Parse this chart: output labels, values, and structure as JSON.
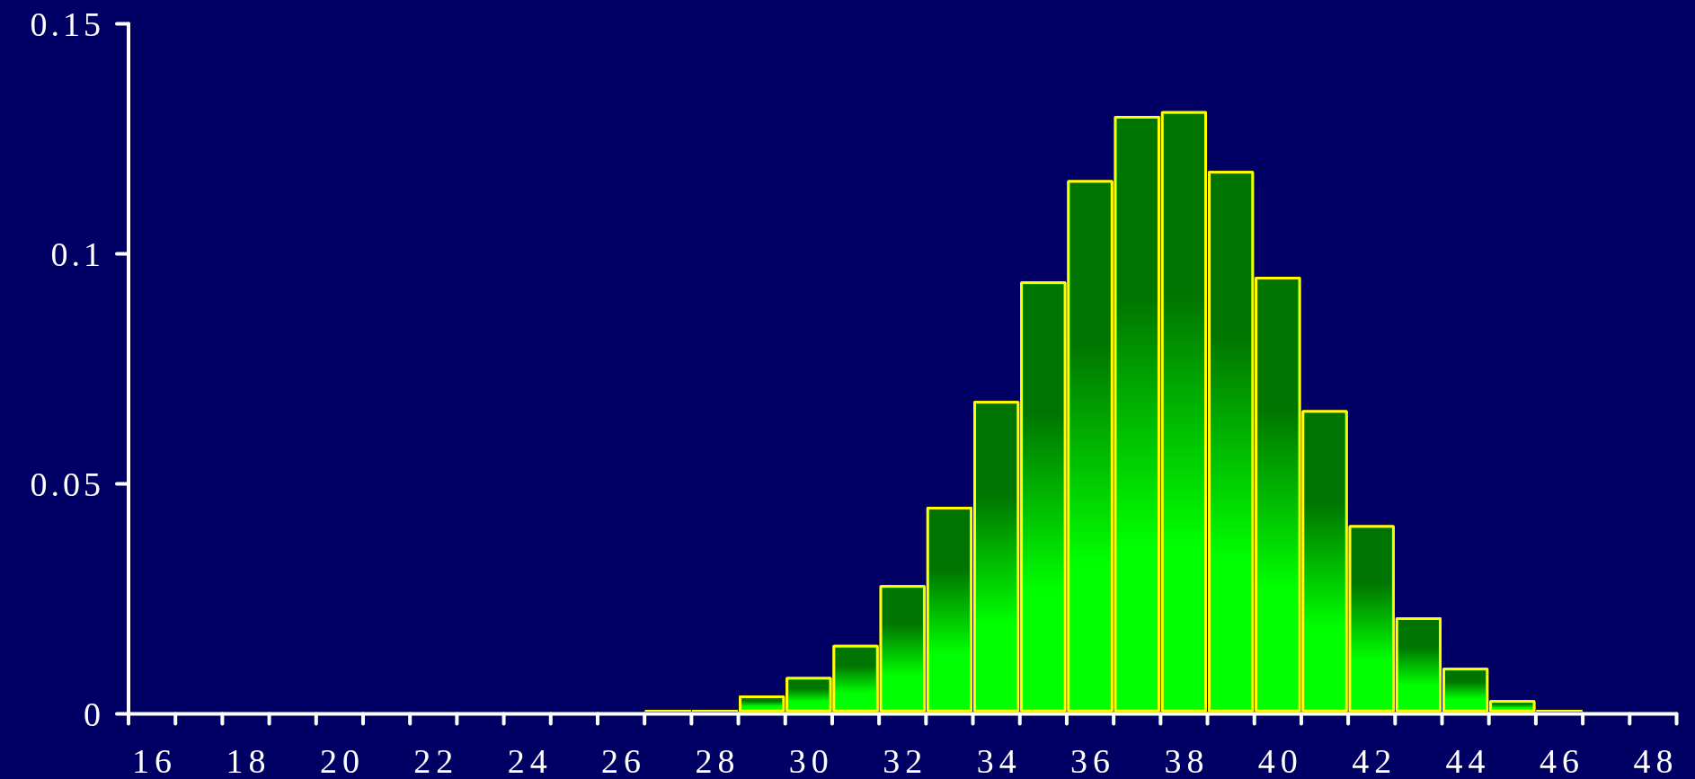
{
  "chart_data": {
    "type": "histogram",
    "color": "#00ff00",
    "bins": [
      26.5,
      27.5,
      28.5,
      29.5,
      30.5,
      31.5,
      32.5,
      33.5,
      34.5,
      35.5,
      36.5,
      37.5,
      38.5,
      39.5,
      40.5,
      41.5,
      42.5,
      43.5,
      44.5,
      45.5,
      46.5
    ],
    "values": [
      0.001,
      0.001,
      0.004,
      0.008,
      0.015,
      0.028,
      0.045,
      0.068,
      0.094,
      0.116,
      0.13,
      0.131,
      0.118,
      0.095,
      0.066,
      0.041,
      0.021,
      0.01,
      0.003,
      0.001
    ],
    "xlim": [
      15.5,
      48.5
    ],
    "xticks": [
      {
        "value": 15.5,
        "label": null
      },
      16,
      {
        "value": 16.5,
        "label": null
      },
      {
        "value": 17.5,
        "label": null
      },
      18,
      {
        "value": 18.5,
        "label": null
      },
      {
        "value": 19.5,
        "label": null
      },
      20,
      {
        "value": 20.5,
        "label": null
      },
      {
        "value": 21.5,
        "label": null
      },
      22,
      {
        "value": 22.5,
        "label": null
      },
      {
        "value": 23.5,
        "label": null
      },
      24,
      {
        "value": 24.5,
        "label": null
      },
      {
        "value": 25.5,
        "label": null
      },
      26,
      {
        "value": 26.5,
        "label": null
      },
      {
        "value": 27.5,
        "label": null
      },
      28,
      {
        "value": 28.5,
        "label": null
      },
      {
        "value": 29.5,
        "label": null
      },
      30,
      {
        "value": 30.5,
        "label": null
      },
      {
        "value": 31.5,
        "label": null
      },
      32,
      {
        "value": 32.5,
        "label": null
      },
      {
        "value": 33.5,
        "label": null
      },
      34,
      {
        "value": 34.5,
        "label": null
      },
      {
        "value": 35.5,
        "label": null
      },
      36,
      {
        "value": 36.5,
        "label": null
      },
      {
        "value": 37.5,
        "label": null
      },
      38,
      {
        "value": 38.5,
        "label": null
      },
      {
        "value": 39.5,
        "label": null
      },
      40,
      {
        "value": 40.5,
        "label": null
      },
      {
        "value": 41.5,
        "label": null
      },
      42,
      {
        "value": 42.5,
        "label": null
      },
      {
        "value": 43.5,
        "label": null
      },
      44,
      {
        "value": 44.5,
        "label": null
      },
      {
        "value": 45.5,
        "label": null
      },
      46,
      {
        "value": 46.5,
        "label": null
      },
      {
        "value": 47.5,
        "label": null
      },
      48,
      {
        "value": 48.5,
        "label": null
      }
    ],
    "ylim": [
      0,
      0.15
    ],
    "yticks": [
      0,
      0.05,
      0.1,
      0.15
    ]
  }
}
